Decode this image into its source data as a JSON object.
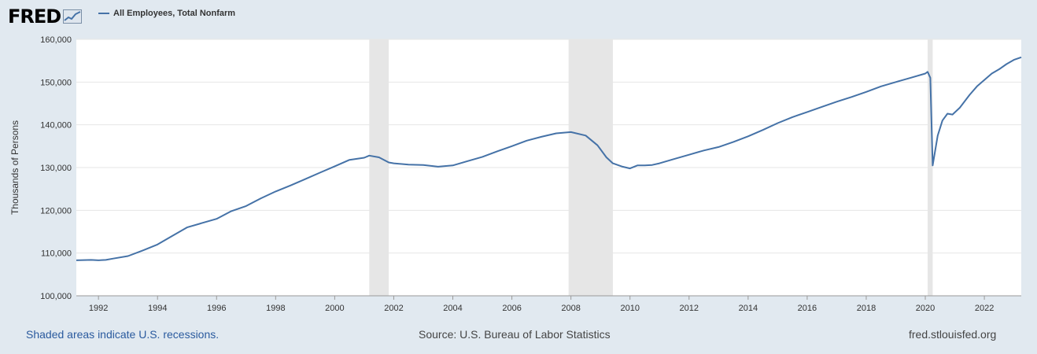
{
  "header": {
    "logo_text": "FRED",
    "legend_label": "All Employees, Total Nonfarm"
  },
  "footer": {
    "note": "Shaded areas indicate U.S. recessions.",
    "source": "Source: U.S. Bureau of Labor Statistics",
    "url": "fred.stlouisfed.org"
  },
  "colors": {
    "line": "#4572a7",
    "recession": "#e6e6e6",
    "background": "#e1e9f0",
    "plot": "#ffffff",
    "grid": "#e6e6e6"
  },
  "chart_data": {
    "type": "line",
    "title": "",
    "xlabel": "",
    "ylabel": "Thousands of Persons",
    "xlim": [
      1991.25,
      2023.25
    ],
    "ylim": [
      100000,
      160000
    ],
    "grid": true,
    "yticks": [
      100000,
      110000,
      120000,
      130000,
      140000,
      150000,
      160000
    ],
    "ytick_labels": [
      "100,000",
      "110,000",
      "120,000",
      "130,000",
      "140,000",
      "150,000",
      "160,000"
    ],
    "xticks": [
      1992,
      1994,
      1996,
      1998,
      2000,
      2002,
      2004,
      2006,
      2008,
      2010,
      2012,
      2014,
      2016,
      2018,
      2020,
      2022
    ],
    "xtick_labels": [
      "1992",
      "1994",
      "1996",
      "1998",
      "2000",
      "2002",
      "2004",
      "2006",
      "2008",
      "2010",
      "2012",
      "2014",
      "2016",
      "2018",
      "2020",
      "2022"
    ],
    "recessions": [
      {
        "start": 2001.17,
        "end": 2001.83
      },
      {
        "start": 2007.92,
        "end": 2009.42
      },
      {
        "start": 2020.08,
        "end": 2020.25
      }
    ],
    "series": [
      {
        "points": [
          [
            1991.25,
            108300
          ],
          [
            1991.75,
            108400
          ],
          [
            1992.0,
            108300
          ],
          [
            1992.25,
            108400
          ],
          [
            1992.5,
            108700
          ],
          [
            1993.0,
            109300
          ],
          [
            1993.5,
            110600
          ],
          [
            1994.0,
            112000
          ],
          [
            1994.5,
            114000
          ],
          [
            1995.0,
            116000
          ],
          [
            1995.5,
            117000
          ],
          [
            1996.0,
            118000
          ],
          [
            1996.5,
            119800
          ],
          [
            1997.0,
            121000
          ],
          [
            1997.5,
            122800
          ],
          [
            1998.0,
            124400
          ],
          [
            1998.5,
            125800
          ],
          [
            1999.0,
            127300
          ],
          [
            1999.5,
            128800
          ],
          [
            2000.0,
            130300
          ],
          [
            2000.5,
            131800
          ],
          [
            2001.0,
            132300
          ],
          [
            2001.17,
            132800
          ],
          [
            2001.5,
            132400
          ],
          [
            2001.83,
            131200
          ],
          [
            2002.0,
            131000
          ],
          [
            2002.5,
            130700
          ],
          [
            2003.0,
            130600
          ],
          [
            2003.5,
            130200
          ],
          [
            2004.0,
            130500
          ],
          [
            2004.5,
            131500
          ],
          [
            2005.0,
            132500
          ],
          [
            2005.5,
            133800
          ],
          [
            2006.0,
            135000
          ],
          [
            2006.5,
            136300
          ],
          [
            2007.0,
            137200
          ],
          [
            2007.5,
            138000
          ],
          [
            2008.0,
            138300
          ],
          [
            2008.5,
            137500
          ],
          [
            2008.9,
            135200
          ],
          [
            2009.2,
            132400
          ],
          [
            2009.42,
            131000
          ],
          [
            2009.75,
            130200
          ],
          [
            2010.0,
            129800
          ],
          [
            2010.25,
            130500
          ],
          [
            2010.5,
            130500
          ],
          [
            2010.75,
            130600
          ],
          [
            2011.0,
            131000
          ],
          [
            2011.5,
            132000
          ],
          [
            2012.0,
            133000
          ],
          [
            2012.5,
            134000
          ],
          [
            2013.0,
            134800
          ],
          [
            2013.5,
            136000
          ],
          [
            2014.0,
            137300
          ],
          [
            2014.5,
            138800
          ],
          [
            2015.0,
            140400
          ],
          [
            2015.5,
            141800
          ],
          [
            2016.0,
            143000
          ],
          [
            2016.5,
            144200
          ],
          [
            2017.0,
            145400
          ],
          [
            2017.5,
            146500
          ],
          [
            2018.0,
            147700
          ],
          [
            2018.5,
            149000
          ],
          [
            2019.0,
            150000
          ],
          [
            2019.5,
            151000
          ],
          [
            2020.0,
            152000
          ],
          [
            2020.08,
            152400
          ],
          [
            2020.17,
            151000
          ],
          [
            2020.25,
            130500
          ],
          [
            2020.42,
            137500
          ],
          [
            2020.58,
            141000
          ],
          [
            2020.75,
            142600
          ],
          [
            2020.92,
            142400
          ],
          [
            2021.17,
            144000
          ],
          [
            2021.5,
            147000
          ],
          [
            2021.75,
            149000
          ],
          [
            2022.0,
            150500
          ],
          [
            2022.25,
            152000
          ],
          [
            2022.5,
            153000
          ],
          [
            2022.75,
            154200
          ],
          [
            2023.0,
            155200
          ],
          [
            2023.25,
            155800
          ]
        ]
      }
    ]
  }
}
